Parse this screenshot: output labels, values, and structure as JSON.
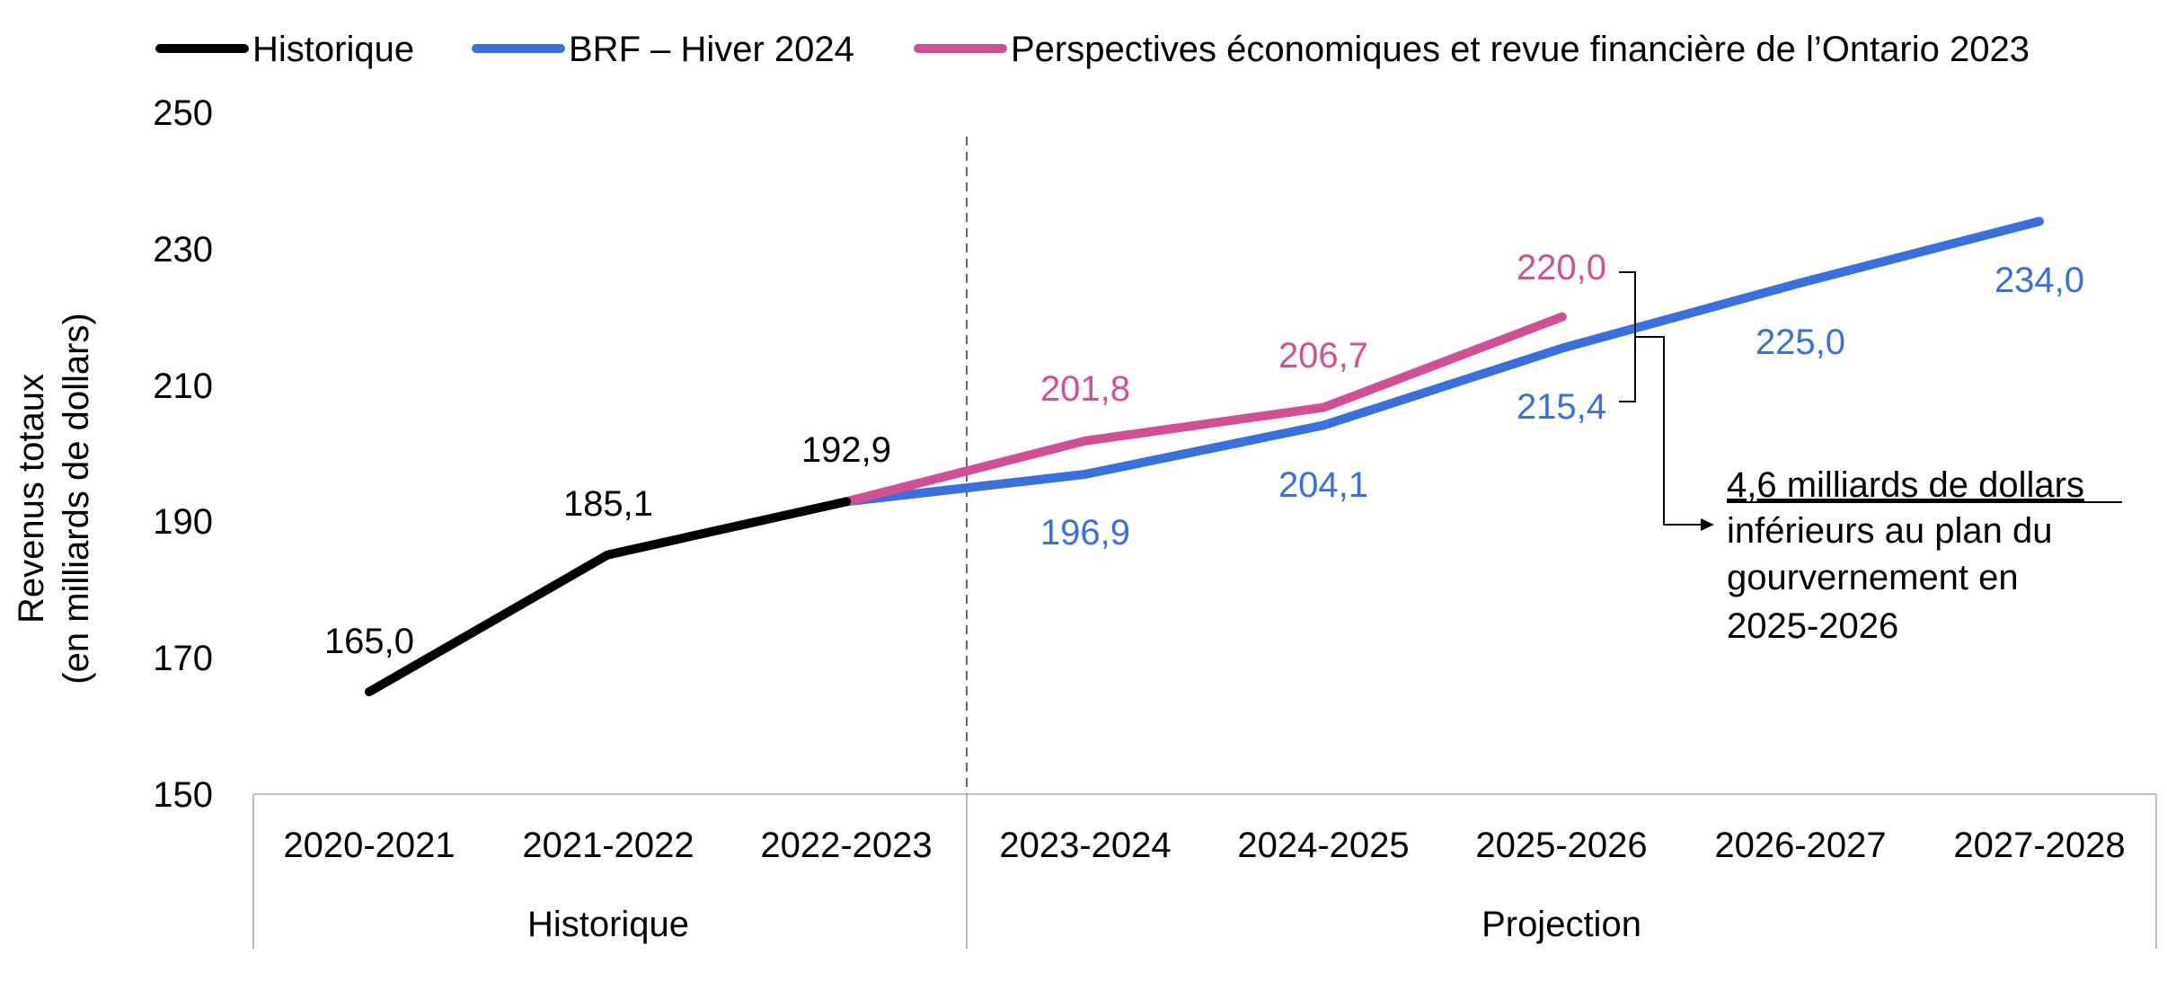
{
  "chart_data": {
    "type": "line",
    "ylabel": [
      "Revenus totaux",
      "(en milliards de dollars)"
    ],
    "ylim": [
      150,
      250
    ],
    "yticks": [
      "150",
      "170",
      "190",
      "210",
      "230",
      "250"
    ],
    "categories": [
      "2020-2021",
      "2021-2022",
      "2022-2023",
      "2023-2024",
      "2024-2025",
      "2025-2026",
      "2026-2027",
      "2027-2028"
    ],
    "groups": [
      {
        "label": "Historique",
        "start": 0,
        "end": 2
      },
      {
        "label": "Projection",
        "start": 3,
        "end": 7
      }
    ],
    "grid": false,
    "legend_position": "top",
    "series": [
      {
        "name": "Historique",
        "color": "#000000",
        "values": [
          165.0,
          185.1,
          192.9,
          null,
          null,
          null,
          null,
          null
        ],
        "labels": [
          "165,0",
          "185,1",
          "192,9",
          null,
          null,
          null,
          null,
          null
        ]
      },
      {
        "name": "BRF – Hiver 2024",
        "color": "#3a6fe0",
        "values": [
          null,
          null,
          192.9,
          196.9,
          204.1,
          215.4,
          225.0,
          234.0
        ],
        "labels": [
          null,
          null,
          null,
          "196,9",
          "204,1",
          "215,4",
          "225,0",
          "234,0"
        ]
      },
      {
        "name": "Perspectives économiques et revue financière de l’Ontario 2023",
        "color": "#d24f96",
        "values": [
          null,
          null,
          192.9,
          201.8,
          206.7,
          220.0,
          null,
          null
        ],
        "labels": [
          null,
          null,
          null,
          "201,8",
          "206,7",
          "220,0",
          null,
          null
        ]
      }
    ],
    "annotation": {
      "underlined": "4,6 milliards de dollars",
      "lines": [
        "inférieurs au plan du",
        "gourvernement en",
        "2025-2026"
      ]
    }
  }
}
